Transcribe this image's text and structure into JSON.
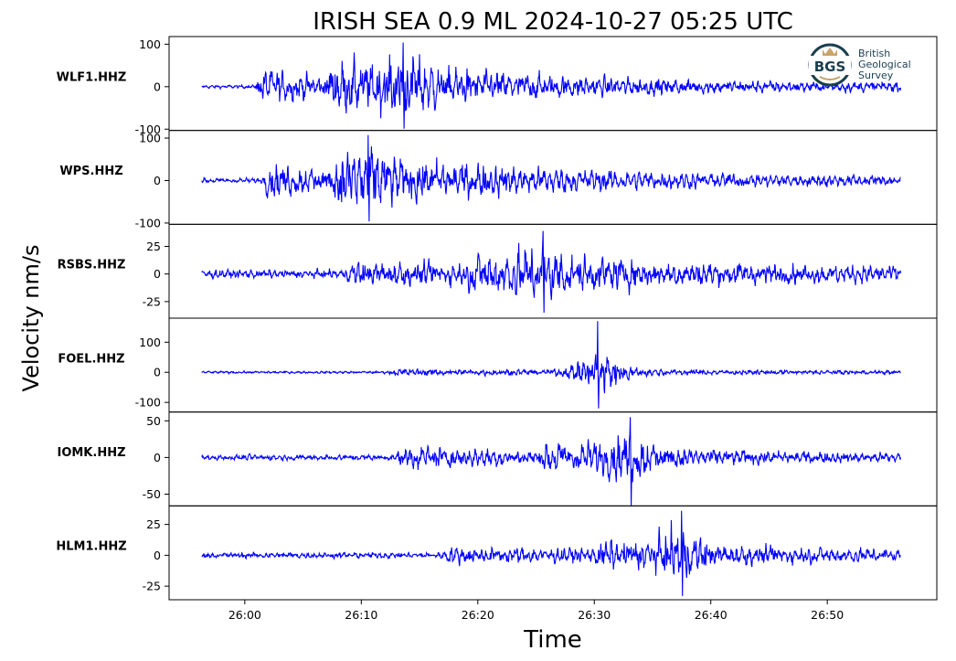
{
  "chart_data": {
    "type": "line",
    "title": "IRISH SEA 0.9 ML   2024-10-27 05:25 UTC",
    "xlabel": "Time",
    "ylabel": "Velocity nm/s",
    "xlim": [
      1553.5,
      1559.4
    ],
    "x_ticks": [
      {
        "value": 1560,
        "label": "26:00"
      },
      {
        "value": 1570,
        "label": "26:10"
      },
      {
        "value": 1580,
        "label": "26:20"
      },
      {
        "value": 1590,
        "label": "26:30"
      },
      {
        "value": 1600,
        "label": "26:40"
      },
      {
        "value": 1610,
        "label": "26:50"
      }
    ],
    "trace_start": 1556.3,
    "trace_end": 1616.3,
    "line_color": "#0000ff",
    "grid": false,
    "panels": [
      {
        "station": "WLF1.HHZ",
        "ylim": [
          -103,
          118
        ],
        "yticks": [
          {
            "value": 100,
            "label": "100"
          },
          {
            "value": 0,
            "label": "0"
          },
          {
            "value": -100,
            "label": "-100"
          }
        ],
        "noise": 4,
        "arrivals": [
          {
            "t": 1560.9,
            "amp": 45,
            "decay": 9
          },
          {
            "t": 1567.0,
            "amp": 48,
            "decay": 14
          },
          {
            "t": 1572.5,
            "amp": 15,
            "decay": 50
          }
        ],
        "peak": {
          "t": 1573.6,
          "max": 104,
          "min": -99
        }
      },
      {
        "station": "WPS.HHZ",
        "ylim": [
          -103,
          118
        ],
        "yticks": [
          {
            "value": 100,
            "label": "100"
          },
          {
            "value": 0,
            "label": "0"
          },
          {
            "value": -100,
            "label": "-100"
          }
        ],
        "noise": 6,
        "arrivals": [
          {
            "t": 1561.5,
            "amp": 42,
            "decay": 9
          },
          {
            "t": 1567.5,
            "amp": 45,
            "decay": 14
          },
          {
            "t": 1574.0,
            "amp": 14,
            "decay": 50
          }
        ],
        "peak": {
          "t": 1570.6,
          "max": 107,
          "min": -96
        }
      },
      {
        "station": "RSBS.HHZ",
        "ylim": [
          -40,
          45
        ],
        "yticks": [
          {
            "value": 25,
            "label": "25"
          },
          {
            "value": 0,
            "label": "0"
          },
          {
            "value": -25,
            "label": "-25"
          }
        ],
        "noise": 4,
        "arrivals": [
          {
            "t": 1568.6,
            "amp": 9,
            "decay": 40
          },
          {
            "t": 1579.0,
            "amp": 13,
            "decay": 16
          }
        ],
        "peak": {
          "t": 1585.6,
          "max": 39,
          "min": -35
        }
      },
      {
        "station": "FOEL.HHZ",
        "ylim": [
          -132,
          180
        ],
        "yticks": [
          {
            "value": 100,
            "label": "100"
          },
          {
            "value": 0,
            "label": "0"
          },
          {
            "value": -100,
            "label": "-100"
          }
        ],
        "noise": 4,
        "arrivals": [
          {
            "t": 1572.3,
            "amp": 9,
            "decay": 40
          },
          {
            "t": 1589.5,
            "amp": 30,
            "decay": 3
          }
        ],
        "peak": {
          "t": 1590.3,
          "max": 170,
          "min": -120
        }
      },
      {
        "station": "IOMK.HHZ",
        "ylim": [
          -66,
          62
        ],
        "yticks": [
          {
            "value": 50,
            "label": "50"
          },
          {
            "value": 0,
            "label": "0"
          },
          {
            "value": -50,
            "label": "-50"
          }
        ],
        "noise": 4,
        "arrivals": [
          {
            "t": 1573.0,
            "amp": 15,
            "decay": 15
          },
          {
            "t": 1585.5,
            "amp": 17,
            "decay": 14
          }
        ],
        "peak": {
          "t": 1593.1,
          "max": 55,
          "min": -66
        }
      },
      {
        "station": "HLM1.HHZ",
        "ylim": [
          -36,
          40
        ],
        "yticks": [
          {
            "value": 25,
            "label": "25"
          },
          {
            "value": 0,
            "label": "0"
          },
          {
            "value": -25,
            "label": "-25"
          }
        ],
        "noise": 2.5,
        "arrivals": [
          {
            "t": 1576.8,
            "amp": 5,
            "decay": 40
          },
          {
            "t": 1590.0,
            "amp": 8,
            "decay": 16
          }
        ],
        "peak": {
          "t": 1597.5,
          "max": 36,
          "min": -33
        }
      }
    ]
  },
  "logo": {
    "initials": "BGS",
    "lines": [
      "British",
      "Geological",
      "Survey"
    ],
    "ring_color": "#1a3f4f",
    "crown_color": "#c9a36a"
  }
}
